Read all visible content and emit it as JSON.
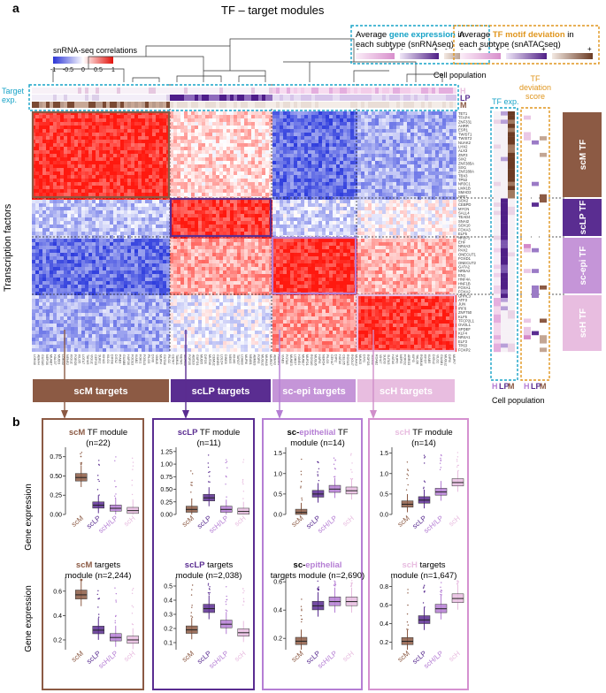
{
  "panel_a": {
    "label": "a",
    "title": "TF – target modules",
    "corr_legend": {
      "title": "snRNA-seq correlations",
      "ticks": [
        "-1",
        "-0.5",
        "0",
        "0.5",
        "1"
      ]
    },
    "gene_expr_legend": {
      "prefix": "Average ",
      "highlight": "gene expression",
      "suffix": " in",
      "line2": "each subtype (snRNAseq)",
      "minus": "-",
      "plus": "+"
    },
    "motif_legend": {
      "prefix": "Average ",
      "highlight": "TF motif deviation",
      "suffix": " in",
      "line2": "each subtype (snATACseq)",
      "minus": "-",
      "plus": "+"
    },
    "cell_population": "Cell population",
    "target_exp": "Target\nexp.",
    "row_annot": [
      "H",
      "LP",
      "M"
    ],
    "y_axis_label": "Transcription factors",
    "tf_exp_label": "TF exp.",
    "tf_dev_label": "TF\ndeviation\nscore",
    "bottom_letters": [
      "H",
      "LP",
      "M"
    ],
    "bottom_cell_population": "Cell population",
    "tf_groups": [
      "scM TF",
      "scLP TF",
      "sc-epi TF",
      "scH TF"
    ],
    "target_groups": [
      "scM targets",
      "scLP targets",
      "sc-epi targets",
      "scH targets"
    ],
    "tf_names": [
      "TET1",
      "TFAP4",
      "ZNF331",
      "AHRR",
      "ESR1",
      "TWIST1",
      "TWIST2",
      "NUAK2",
      "LHX2",
      "ALX3",
      "ZNF3",
      "SIX2",
      "ZNF385A",
      "SIX1",
      "ZNF280A",
      "TBX3",
      "TP53",
      "NR3C1",
      "LMX1B",
      "SMAD3",
      "NRF1",
      "SOX2",
      "CEBPD",
      "MYCN",
      "SALL4",
      "TEAD4",
      "SNAI2",
      "SOX10",
      "FOXA3",
      "ELF5",
      "NR2F1",
      "EHF",
      "NR4A3",
      "PAX2",
      "ONECUT1",
      "FOXD1",
      "ONECUT2",
      "GATA2",
      "NR5A2",
      "EN1",
      "HNF4A",
      "HNF1B",
      "FOXA1",
      "FOXA2",
      "GRHL3",
      "ATF3",
      "JUN",
      "IRF6",
      "ZNF750",
      "KLF5",
      "TFCP2L1",
      "OVOL1",
      "SPDEF",
      "KLF4",
      "NR4A1",
      "ELF3",
      "TP63",
      "FOXP2"
    ]
  },
  "panel_b": {
    "label": "b",
    "y_axis_label": "Gene expression",
    "categories": [
      "scM",
      "scLP",
      "scH/LP",
      "scH"
    ],
    "tf_modules": [
      {
        "title_colored": "scM",
        "title_rest": " TF module",
        "n": "(n=22)"
      },
      {
        "title_colored": "scLP",
        "title_rest": " TF module",
        "n": "(n=11)"
      },
      {
        "title_pre": "sc-",
        "title_colored": "epithelial",
        "title_rest": " TF",
        "n": "module (n=14)"
      },
      {
        "title_colored": "scH",
        "title_rest": " TF module",
        "n": "(n=14)"
      }
    ],
    "target_modules": [
      {
        "title_colored": "scM",
        "title_rest": " targets",
        "n": "module (n=2,244)"
      },
      {
        "title_colored": "scLP",
        "title_rest": " targets",
        "n": "module (n=2,038)"
      },
      {
        "title_pre": "sc-",
        "title_colored": "epithelial",
        "title_rest": "",
        "n": "targets module (n=2,690)"
      },
      {
        "title_colored": "scH",
        "title_rest": " targets",
        "n": "module (n=1,647)"
      }
    ],
    "axis_ticks": {
      "tf_1": [
        "0.00",
        "0.25",
        "0.50",
        "0.75"
      ],
      "tf_2": [
        "0.00",
        "0.25",
        "0.50",
        "0.75",
        "1.00",
        "1.25"
      ],
      "tf_3": [
        "0.0",
        "0.5",
        "1.0",
        "1.5"
      ],
      "tf_4": [
        "0.0",
        "0.5",
        "1.0",
        "1.5"
      ],
      "tg_1": [
        "0.2",
        "0.4",
        "0.6"
      ],
      "tg_2": [
        "0.1",
        "0.2",
        "0.3",
        "0.4",
        "0.5"
      ],
      "tg_3": [
        "0.2",
        "0.4",
        "0.6"
      ],
      "tg_4": [
        "0.2",
        "0.4",
        "0.6",
        "0.8"
      ]
    }
  },
  "chart_data": {
    "type": "box",
    "categories": [
      "scM",
      "scLP",
      "scH/LP",
      "scH"
    ],
    "tf_modules": [
      {
        "name": "scM TF module",
        "ylim": [
          0,
          0.85
        ],
        "medians": [
          0.48,
          0.12,
          0.08,
          0.05
        ]
      },
      {
        "name": "scLP TF module",
        "ylim": [
          0,
          1.3
        ],
        "medians": [
          0.1,
          0.33,
          0.1,
          0.06
        ]
      },
      {
        "name": "sc-epithelial TF module",
        "ylim": [
          0,
          1.6
        ],
        "medians": [
          0.05,
          0.5,
          0.62,
          0.58
        ]
      },
      {
        "name": "scH TF module",
        "ylim": [
          0,
          1.6
        ],
        "medians": [
          0.25,
          0.35,
          0.55,
          0.78
        ]
      }
    ],
    "target_modules": [
      {
        "name": "scM targets module",
        "ylim": [
          0.12,
          0.7
        ],
        "medians": [
          0.57,
          0.28,
          0.22,
          0.2
        ]
      },
      {
        "name": "scLP targets module",
        "ylim": [
          0.05,
          0.55
        ],
        "medians": [
          0.19,
          0.34,
          0.23,
          0.17
        ]
      },
      {
        "name": "sc-epithelial targets module",
        "ylim": [
          0.12,
          0.62
        ],
        "medians": [
          0.18,
          0.43,
          0.46,
          0.46
        ]
      },
      {
        "name": "scH targets module",
        "ylim": [
          0.12,
          0.88
        ],
        "medians": [
          0.21,
          0.44,
          0.56,
          0.67
        ]
      }
    ]
  },
  "colors": {
    "scM": "#8c5a44",
    "scLP": "#5a2d91",
    "scHLP": "#b57ed4",
    "scH": "#e8bde0",
    "blue": "#3b47d9",
    "red": "#e8150e",
    "cyan_box": "#17a3c7",
    "orange_box": "#e0961e"
  }
}
